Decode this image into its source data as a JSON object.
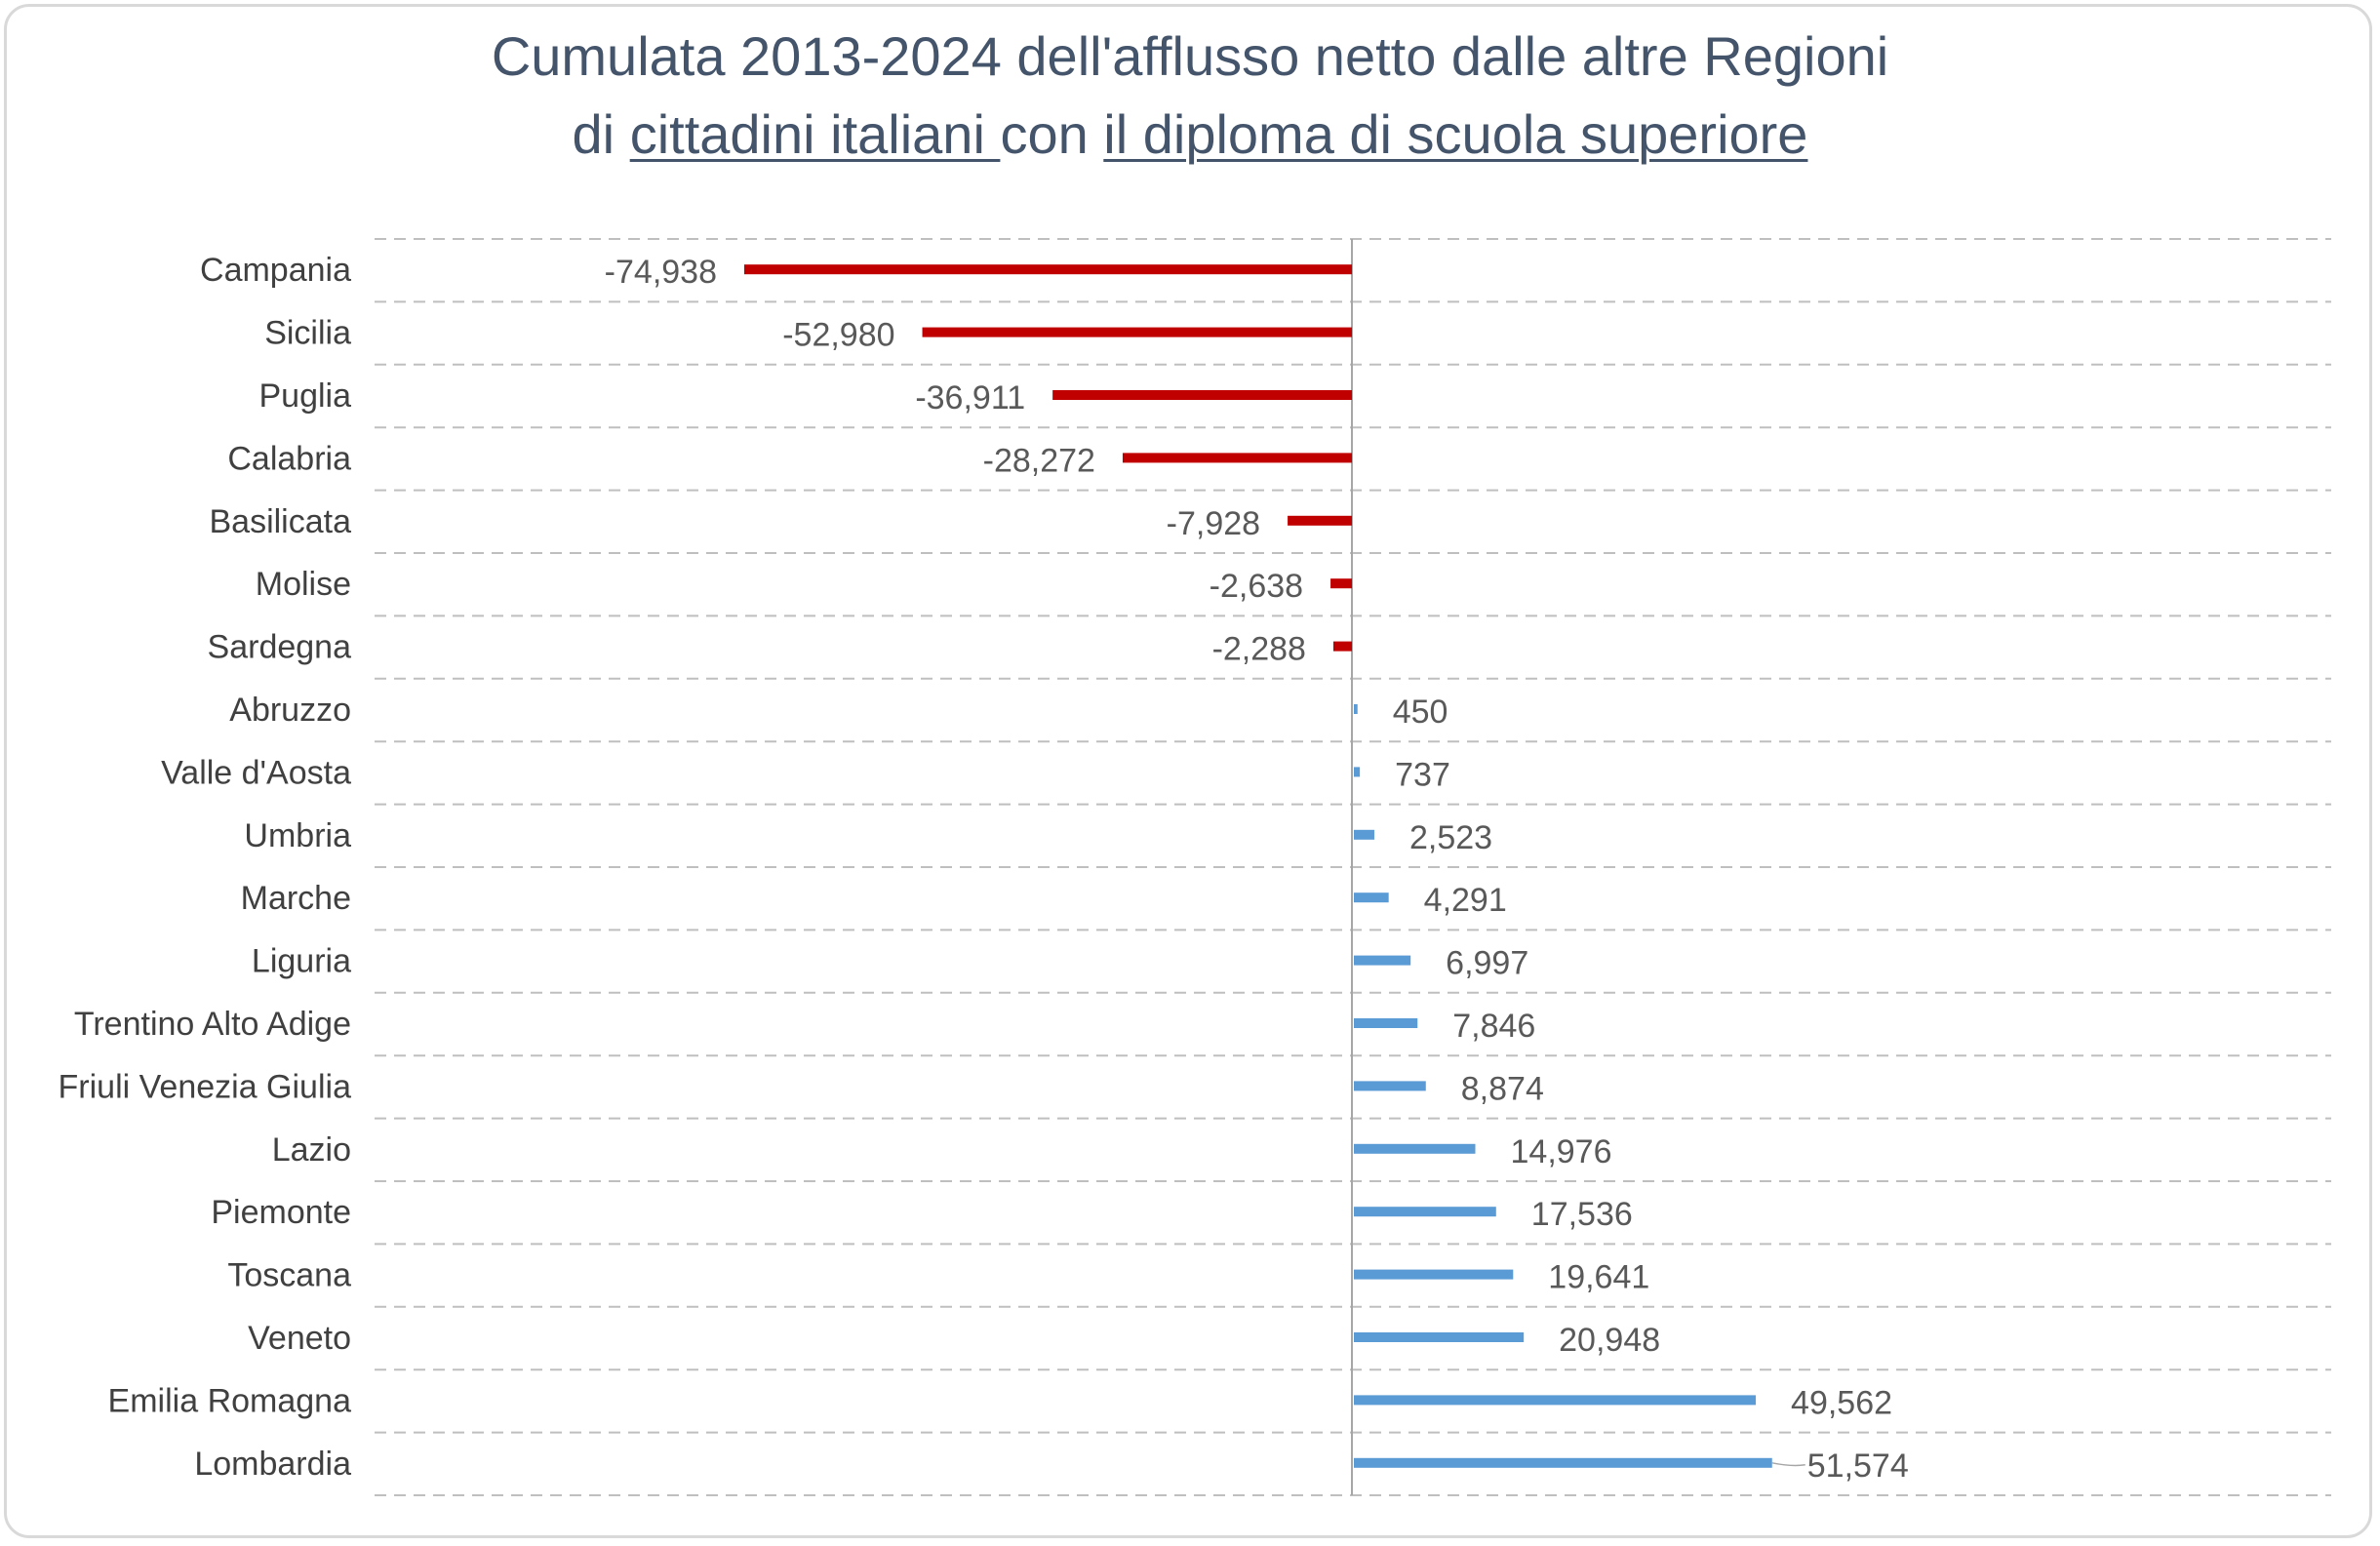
{
  "chart_data": {
    "type": "bar",
    "orientation": "horizontal",
    "title_line1": "Cumulata 2013-2024 dell'afflusso netto dalle altre Regioni",
    "title_line2": {
      "part1": "di ",
      "underlined1": "cittadini italiani ",
      "part2": "con ",
      "underlined2": "il diploma di scuola superiore"
    },
    "xlabel": "",
    "ylabel": "",
    "xlim": [
      -100000,
      100000
    ],
    "grid": true,
    "negative_color": "#c00000",
    "positive_color": "#5b9bd5",
    "categories": [
      "Campania",
      "Sicilia",
      "Puglia",
      "Calabria",
      "Basilicata",
      "Molise",
      "Sardegna",
      "Abruzzo",
      "Valle d'Aosta",
      "Umbria",
      "Marche",
      "Liguria",
      "Trentino Alto Adige",
      "Friuli Venezia Giulia",
      "Lazio",
      "Piemonte",
      "Toscana",
      "Veneto",
      "Emilia Romagna",
      "Lombardia"
    ],
    "values": [
      -74938,
      -52980,
      -36911,
      -28272,
      -7928,
      -2638,
      -2288,
      450,
      737,
      2523,
      4291,
      6997,
      7846,
      8874,
      14976,
      17536,
      19641,
      20948,
      49562,
      51574
    ],
    "data_labels": [
      "-74,938",
      "-52,980",
      "-36,911",
      "-28,272",
      "-7,928",
      "-2,638",
      "-2,288",
      "450",
      "737",
      "2,523",
      "4,291",
      "6,997",
      "7,846",
      "8,874",
      "14,976",
      "17,536",
      "19,641",
      "20,948",
      "49,562",
      "51,574"
    ]
  }
}
